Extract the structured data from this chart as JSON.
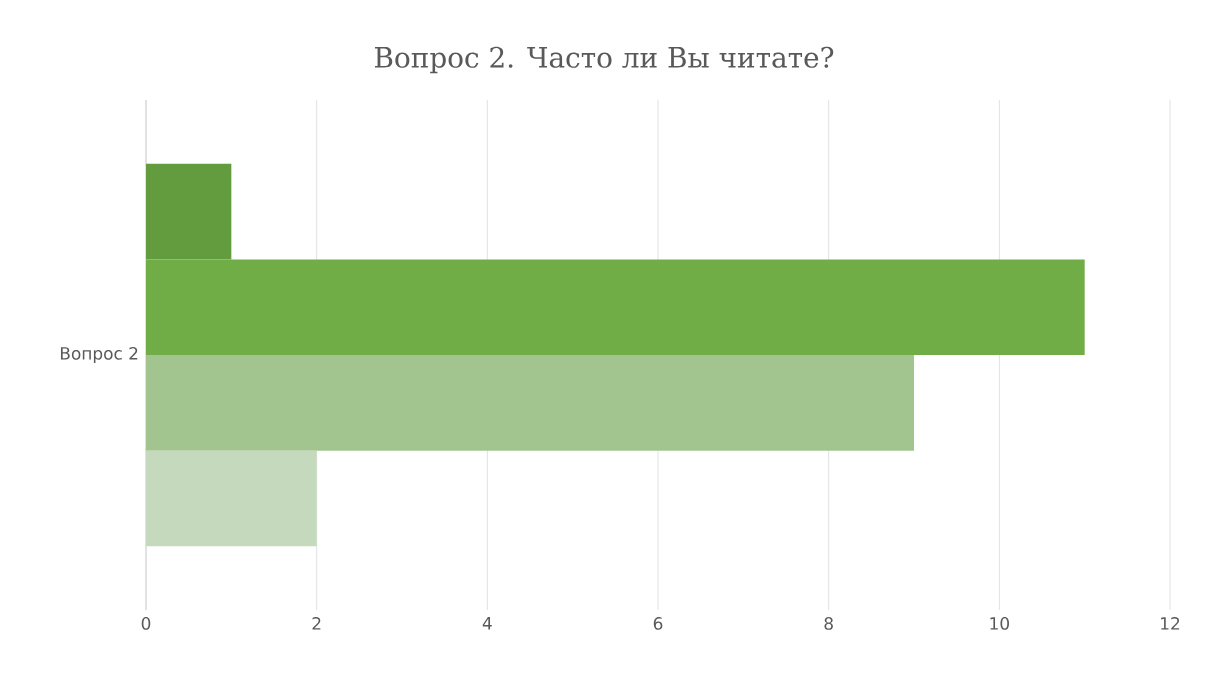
{
  "chart_data": {
    "type": "bar",
    "orientation": "horizontal",
    "title": "Вопрос 2. Часто ли Вы читате?",
    "categories": [
      "Вопрос 2"
    ],
    "series": [
      {
        "color": "#629c3f",
        "values": [
          1
        ]
      },
      {
        "color": "#70ad47",
        "values": [
          11
        ]
      },
      {
        "color": "#a2c58f",
        "values": [
          9
        ]
      },
      {
        "color": "#c5d9bc",
        "values": [
          2
        ]
      }
    ],
    "xlim": [
      0,
      12
    ],
    "xticks": [
      0,
      2,
      4,
      6,
      8,
      10,
      12
    ],
    "grid": "x"
  }
}
